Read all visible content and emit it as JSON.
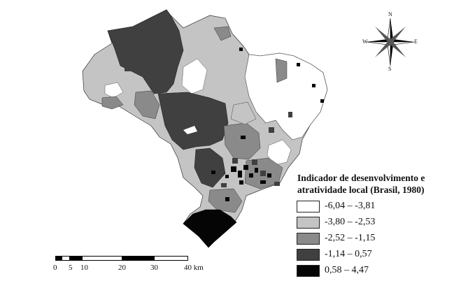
{
  "legend": {
    "title_line1": "Indicador de desenvolvimento e",
    "title_line2": "atratividade local (Brasil, 1980)",
    "classes": [
      {
        "range": "-6,04  –  -3,81",
        "color": "#ffffff"
      },
      {
        "range": "-3,80  –  -2,53",
        "color": "#c4c4c4"
      },
      {
        "range": "-2,52  –  -1,15",
        "color": "#8a8a8a"
      },
      {
        "range": "-1,14  –  0,57",
        "color": "#404040"
      },
      {
        "range": "0,58  –  4,47",
        "color": "#050505"
      }
    ]
  },
  "scale": {
    "labels": [
      "0",
      "5",
      "10",
      "20",
      "30",
      "40 km"
    ]
  },
  "compass": {
    "n": "N",
    "s": "S",
    "e": "E",
    "w": "W"
  }
}
